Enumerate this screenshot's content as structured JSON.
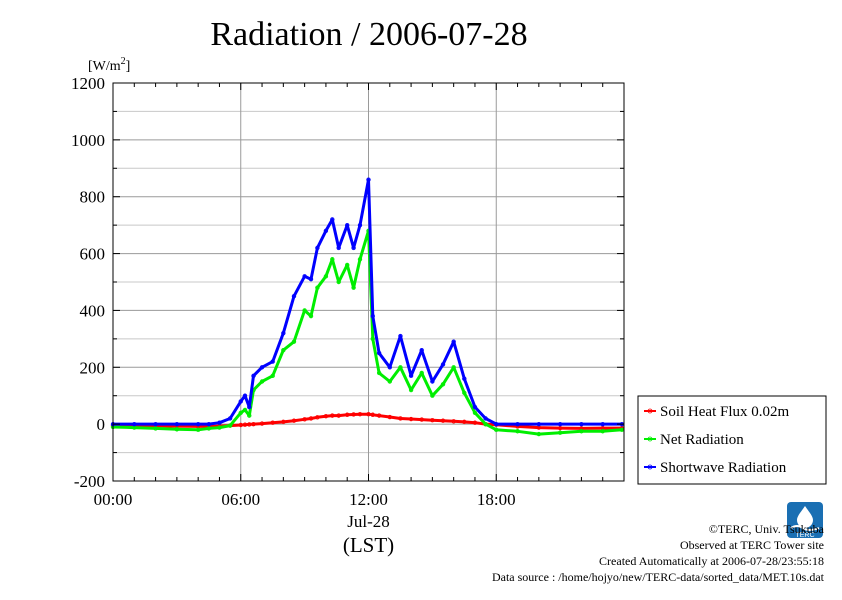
{
  "chart_data": {
    "type": "line",
    "title": "Radiation / 2006-07-28",
    "ylabel_prefix": "[W/m",
    "ylabel_suffix": "]",
    "ylabel_sup": "2",
    "xlabel_date": "Jul-28",
    "xlabel_unit": "(LST)",
    "x_ticks": [
      "00:00",
      "06:00",
      "12:00",
      "18:00"
    ],
    "x_tick_values": [
      0,
      6,
      12,
      18
    ],
    "xlim": [
      0,
      24
    ],
    "ylim": [
      -200,
      1200
    ],
    "y_ticks": [
      -200,
      0,
      200,
      400,
      600,
      800,
      1000,
      1200
    ],
    "grid": true,
    "legend_position": "right",
    "x_hours": [
      0,
      1,
      2,
      3,
      4,
      4.5,
      5,
      5.5,
      6,
      6.2,
      6.4,
      6.6,
      7,
      7.5,
      8,
      8.5,
      9,
      9.3,
      9.6,
      10,
      10.3,
      10.6,
      11,
      11.3,
      11.6,
      12,
      12.2,
      12.5,
      13,
      13.5,
      14,
      14.5,
      15,
      15.5,
      16,
      16.5,
      17,
      17.5,
      18,
      19,
      20,
      21,
      22,
      23,
      23.9
    ],
    "series": [
      {
        "name": "Soil Heat Flux 0.02m",
        "color": "#ff0000",
        "values": [
          -5,
          -5,
          -6,
          -7,
          -8,
          -8,
          -7,
          -5,
          -3,
          -2,
          -1,
          0,
          2,
          5,
          8,
          12,
          17,
          20,
          24,
          28,
          30,
          30,
          33,
          34,
          35,
          35,
          33,
          30,
          25,
          20,
          18,
          16,
          14,
          12,
          10,
          8,
          5,
          0,
          -2,
          -8,
          -12,
          -14,
          -15,
          -14,
          -14
        ]
      },
      {
        "name": "Net Radiation",
        "color": "#00ee00",
        "values": [
          -10,
          -12,
          -15,
          -18,
          -20,
          -15,
          -12,
          -5,
          40,
          50,
          30,
          120,
          150,
          170,
          260,
          290,
          400,
          380,
          480,
          520,
          580,
          500,
          560,
          480,
          580,
          680,
          300,
          180,
          150,
          200,
          120,
          180,
          100,
          140,
          200,
          110,
          40,
          0,
          -20,
          -25,
          -35,
          -30,
          -25,
          -25,
          -20
        ]
      },
      {
        "name": "Shortwave Radiation",
        "color": "#0000ff",
        "values": [
          0,
          0,
          0,
          0,
          0,
          0,
          5,
          20,
          80,
          100,
          60,
          170,
          200,
          220,
          320,
          450,
          520,
          510,
          620,
          680,
          720,
          620,
          700,
          620,
          700,
          860,
          380,
          250,
          200,
          310,
          170,
          260,
          150,
          210,
          290,
          160,
          60,
          20,
          0,
          0,
          0,
          0,
          0,
          0,
          0
        ]
      }
    ]
  },
  "footer": {
    "copyright": "©TERC, Univ. Tsukuba",
    "site": "Observed at TERC Tower site",
    "created": "Created Automatically at 2006-07-28/23:55:18",
    "source": "Data source : /home/hojyo/new/TERC-data/sorted_data/MET.10s.dat"
  },
  "logo": {
    "text": "TERC",
    "color": "#1a6fb3"
  }
}
